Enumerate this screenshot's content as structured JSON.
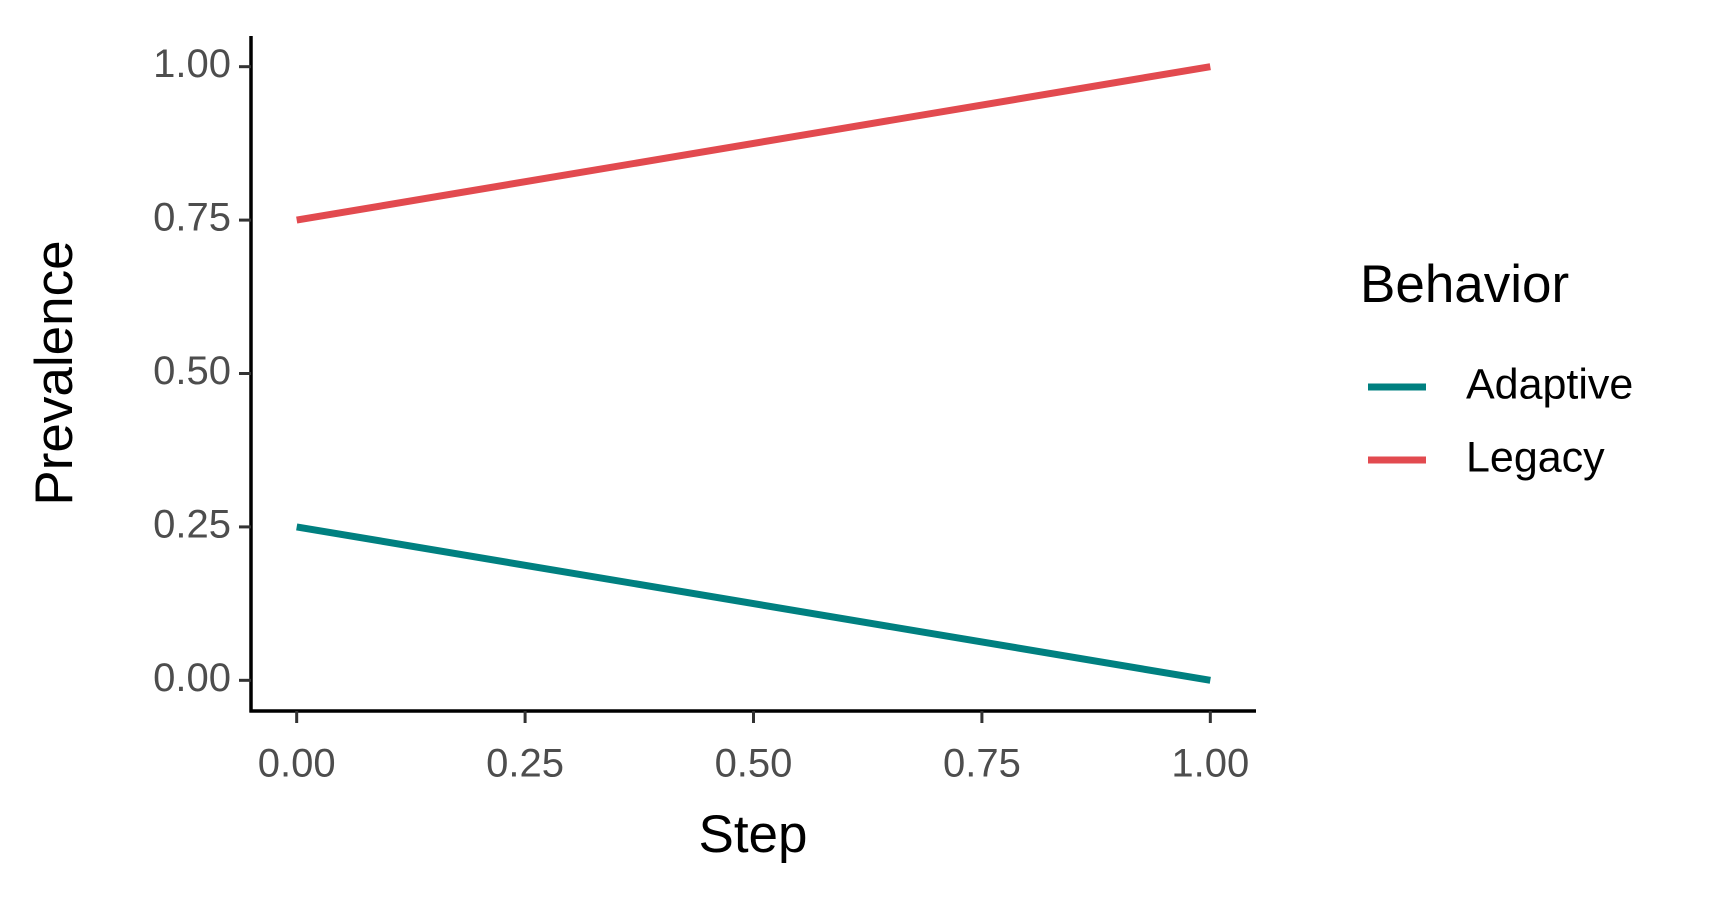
{
  "chart_data": {
    "type": "line",
    "x_label": "Step",
    "y_label": "Prevalence",
    "legend_title": "Behavior",
    "x": [
      0,
      1
    ],
    "series": [
      {
        "name": "Adaptive",
        "color": "#008080",
        "values": [
          0.25,
          0
        ]
      },
      {
        "name": "Legacy",
        "color": "#e24a4f",
        "values": [
          0.75,
          1
        ]
      }
    ],
    "xlim": [
      -0.05,
      1.05
    ],
    "xticks": [
      {
        "value": 0,
        "label": "0.00"
      },
      {
        "value": 0.25,
        "label": "0.25"
      },
      {
        "value": 0.5,
        "label": "0.50"
      },
      {
        "value": 0.75,
        "label": "0.75"
      },
      {
        "value": 1,
        "label": "1.00"
      }
    ],
    "ylim": [
      -0.05,
      1.05
    ],
    "yticks": [
      {
        "value": 0,
        "label": "0.00"
      },
      {
        "value": 0.25,
        "label": "0.25"
      },
      {
        "value": 0.5,
        "label": "0.50"
      },
      {
        "value": 0.75,
        "label": "0.75"
      },
      {
        "value": 1,
        "label": "1.00"
      }
    ],
    "legend_position": "right"
  }
}
